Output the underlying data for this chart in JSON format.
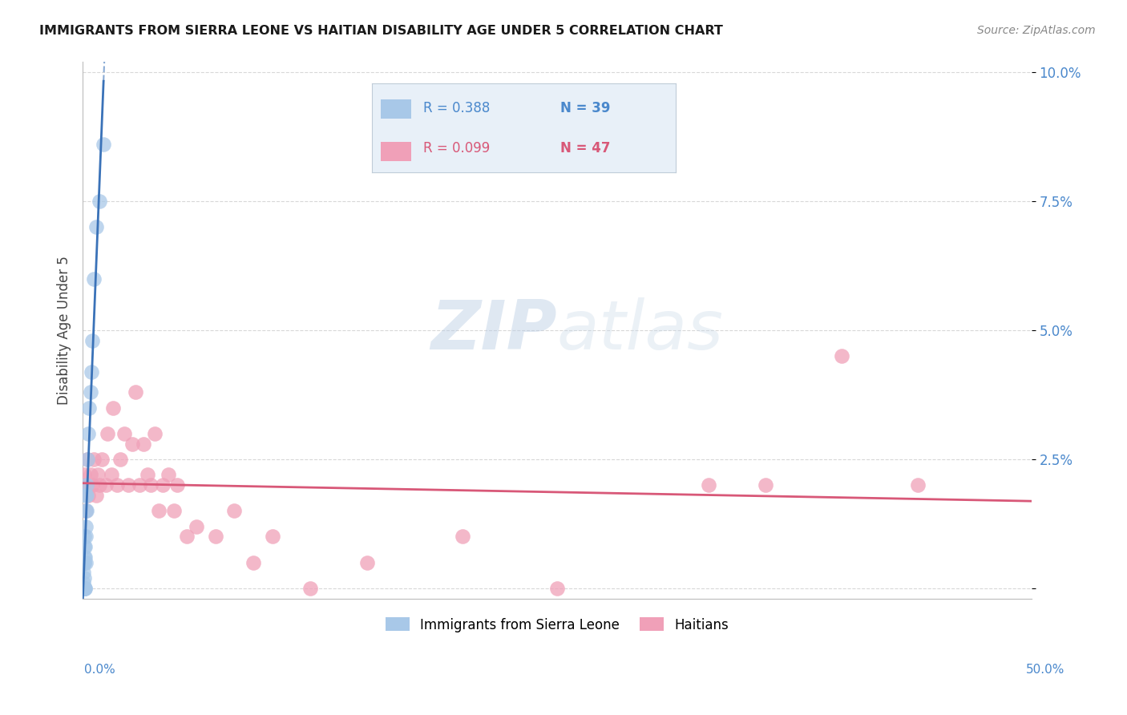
{
  "title": "IMMIGRANTS FROM SIERRA LEONE VS HAITIAN DISABILITY AGE UNDER 5 CORRELATION CHART",
  "source": "Source: ZipAtlas.com",
  "ylabel": "Disability Age Under 5",
  "sierra_leone": {
    "R": 0.388,
    "N": 39,
    "color": "#a8c8e8",
    "line_color": "#3a72b8",
    "x": [
      0.0003,
      0.0003,
      0.0004,
      0.0004,
      0.0005,
      0.0005,
      0.0006,
      0.0006,
      0.0007,
      0.0007,
      0.0008,
      0.0008,
      0.0009,
      0.0009,
      0.001,
      0.001,
      0.001,
      0.0012,
      0.0012,
      0.0013,
      0.0014,
      0.0015,
      0.0015,
      0.0016,
      0.0017,
      0.0018,
      0.002,
      0.002,
      0.0022,
      0.0025,
      0.003,
      0.0035,
      0.004,
      0.0045,
      0.005,
      0.006,
      0.007,
      0.009,
      0.011
    ],
    "y": [
      0.0,
      0.001,
      0.0,
      0.005,
      0.0,
      0.003,
      0.0,
      0.006,
      0.0,
      0.002,
      0.0,
      0.005,
      0.0,
      0.008,
      0.0,
      0.005,
      0.01,
      0.0,
      0.006,
      0.008,
      0.0,
      0.01,
      0.015,
      0.018,
      0.005,
      0.012,
      0.015,
      0.02,
      0.018,
      0.025,
      0.03,
      0.035,
      0.038,
      0.042,
      0.048,
      0.06,
      0.07,
      0.075,
      0.086
    ]
  },
  "haitians": {
    "R": 0.099,
    "N": 47,
    "color": "#f0a0b8",
    "line_color": "#d85878",
    "x": [
      0.0005,
      0.001,
      0.0015,
      0.002,
      0.0025,
      0.003,
      0.004,
      0.005,
      0.006,
      0.007,
      0.008,
      0.009,
      0.01,
      0.012,
      0.013,
      0.015,
      0.016,
      0.018,
      0.02,
      0.022,
      0.024,
      0.026,
      0.028,
      0.03,
      0.032,
      0.034,
      0.036,
      0.038,
      0.04,
      0.042,
      0.045,
      0.048,
      0.05,
      0.055,
      0.06,
      0.07,
      0.08,
      0.09,
      0.1,
      0.12,
      0.15,
      0.2,
      0.25,
      0.33,
      0.36,
      0.4,
      0.44
    ],
    "y": [
      0.02,
      0.022,
      0.015,
      0.02,
      0.025,
      0.018,
      0.022,
      0.02,
      0.025,
      0.018,
      0.022,
      0.02,
      0.025,
      0.02,
      0.03,
      0.022,
      0.035,
      0.02,
      0.025,
      0.03,
      0.02,
      0.028,
      0.038,
      0.02,
      0.028,
      0.022,
      0.02,
      0.03,
      0.015,
      0.02,
      0.022,
      0.015,
      0.02,
      0.01,
      0.012,
      0.01,
      0.015,
      0.005,
      0.01,
      0.0,
      0.005,
      0.01,
      0.0,
      0.02,
      0.02,
      0.045,
      0.02
    ]
  },
  "xlim": [
    0.0,
    0.5
  ],
  "ylim": [
    -0.002,
    0.102
  ],
  "yticks": [
    0.0,
    0.025,
    0.05,
    0.075,
    0.1
  ],
  "ytick_labels": [
    "",
    "2.5%",
    "5.0%",
    "7.5%",
    "10.0%"
  ],
  "xticks": [
    0.0,
    0.05,
    0.1,
    0.15,
    0.2,
    0.25,
    0.3,
    0.35,
    0.4,
    0.45,
    0.5
  ],
  "watermark_text": "ZIPatlas",
  "watermark_color": "#c8d8f0",
  "background_color": "#ffffff",
  "grid_color": "#d8d8d8",
  "legend_box_color": "#e8f0f8",
  "legend_box_edge": "#c0ccd8"
}
